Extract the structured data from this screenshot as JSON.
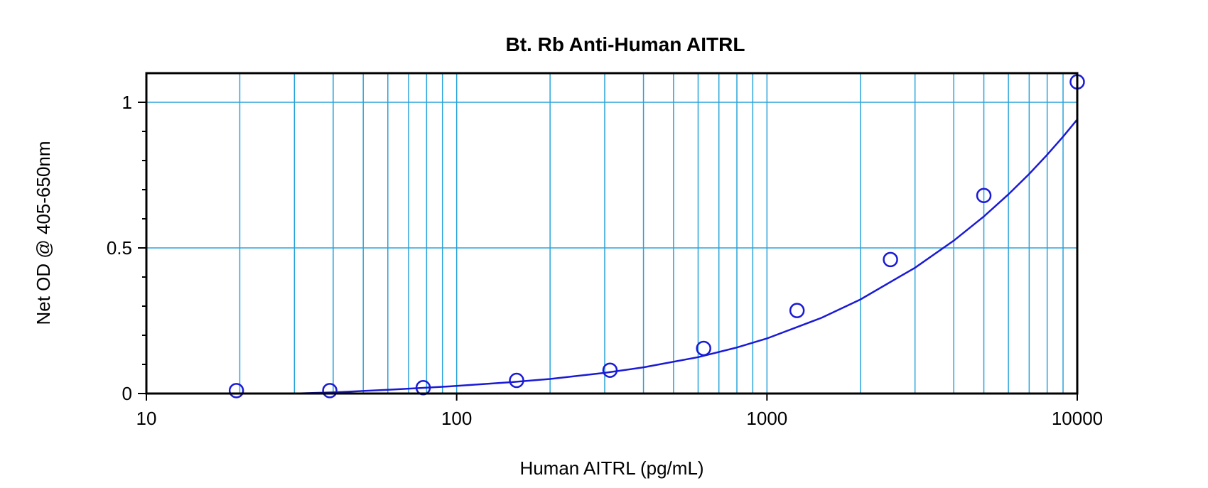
{
  "chart_data": {
    "type": "scatter",
    "title": "Bt. Rb Anti-Human AITRL",
    "xlabel": "Human AITRL (pg/mL)",
    "ylabel": "Net OD @ 405-650nm",
    "x_scale": "log",
    "xlim": [
      10,
      10000
    ],
    "ylim": [
      0,
      1.1
    ],
    "x_ticks": [
      10,
      100,
      1000,
      10000
    ],
    "x_tick_labels": [
      "10",
      "100",
      "1000",
      "10000"
    ],
    "y_ticks": [
      0,
      0.5,
      1
    ],
    "y_tick_labels": [
      "0",
      "0.5",
      "1"
    ],
    "y_minor_ticks": [
      0.1,
      0.2,
      0.3,
      0.4,
      0.6,
      0.7,
      0.8,
      0.9
    ],
    "grid": true,
    "colors": {
      "grid": "#29a3d9",
      "series": "#1a1ad6",
      "axes": "#000000"
    },
    "series": [
      {
        "x": [
          19.5,
          39,
          78,
          156,
          312,
          625,
          1250,
          2500,
          5000,
          10000
        ],
        "y": [
          0.01,
          0.01,
          0.02,
          0.045,
          0.08,
          0.155,
          0.285,
          0.46,
          0.68,
          1.07
        ]
      }
    ],
    "fit_curve": {
      "x": [
        30,
        40,
        60,
        80,
        100,
        150,
        200,
        300,
        400,
        600,
        800,
        1000,
        1500,
        2000,
        3000,
        4000,
        5000,
        6000,
        7000,
        8000,
        9000,
        10000
      ],
      "y": [
        0.0,
        0.004,
        0.013,
        0.02,
        0.026,
        0.039,
        0.05,
        0.071,
        0.09,
        0.125,
        0.158,
        0.189,
        0.26,
        0.323,
        0.432,
        0.525,
        0.608,
        0.684,
        0.754,
        0.82,
        0.882,
        0.941
      ]
    }
  }
}
